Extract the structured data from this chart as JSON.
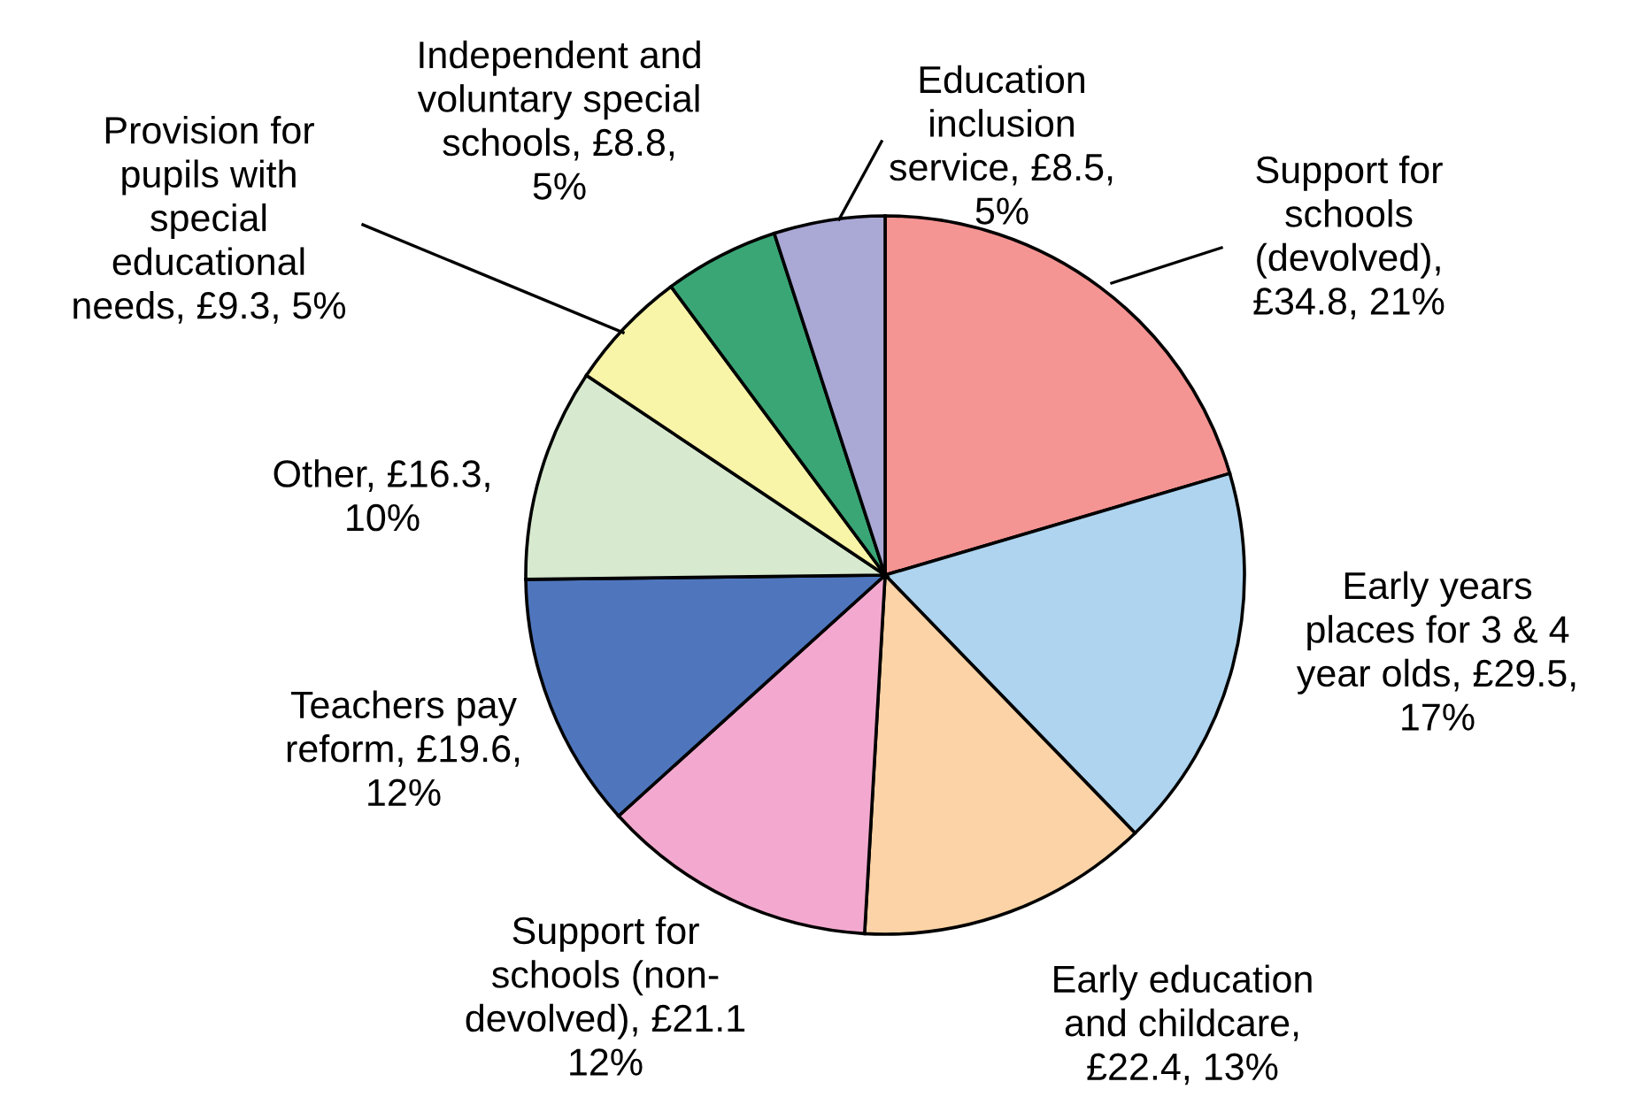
{
  "chart_data": {
    "type": "pie",
    "categories": [
      "Support for\nschools\n(devolved),\n£34.8, 21%",
      "Early years\nplaces for 3 & 4\nyear olds, £29.5,\n17%",
      "Early education\nand childcare,\n£22.4, 13%",
      "Support for\nschools (non-\ndevolved), £21.1\n12%",
      "Teachers pay\nreform, £19.6,\n12%",
      "Other, £16.3,\n10%",
      "Provision for\npupils with\nspecial\neducational\nneeds, £9.3, 5%",
      "Independent and\nvoluntary special\nschools, £8.8,\n5%",
      "Education\ninclusion\nservice, £8.5,\n5%"
    ],
    "values": [
      34.8,
      29.5,
      22.4,
      21.1,
      19.6,
      16.3,
      9.3,
      8.8,
      8.5
    ],
    "colors": [
      "#f59593",
      "#aed4ef",
      "#fbd3a6",
      "#f3a9cf",
      "#4f76bd",
      "#d7eacf",
      "#f8f4a8",
      "#3aa676",
      "#aaa8d5"
    ]
  }
}
